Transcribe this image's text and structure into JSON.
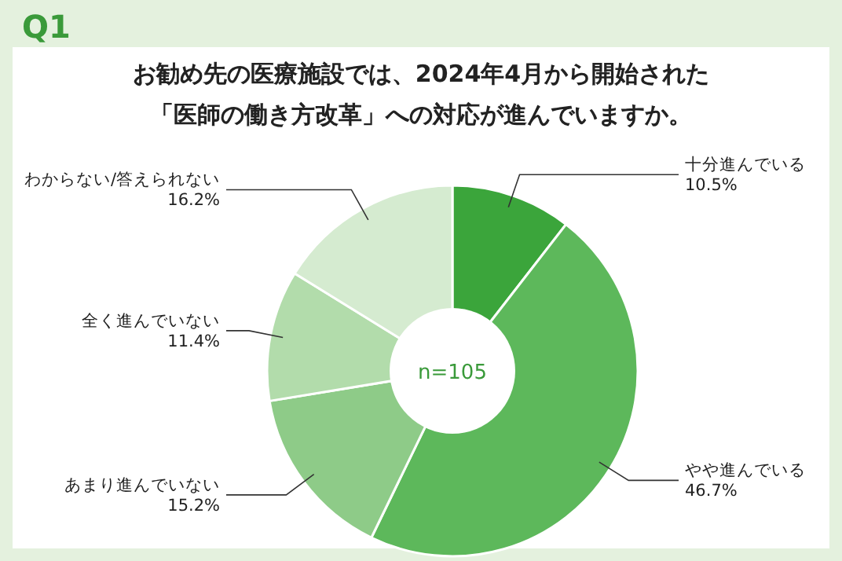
{
  "chart_data": {
    "type": "donut",
    "title": "お勧め先の医療施設では、2024年4月から開始された",
    "subtitle": "「医師の働き方改革」への対応が進んでいますか。",
    "annotations": [
      "Q1",
      "n=105"
    ],
    "categories": [
      "十分進んでいる",
      "やや進んでいる",
      "あまり進んでいない",
      "全く進んでいない",
      "わからない/答えられない"
    ],
    "values": [
      10.5,
      46.7,
      15.2,
      11.4,
      16.2
    ],
    "value_labels": [
      "10.5%",
      "46.7%",
      "15.2%",
      "11.4%",
      "16.2%"
    ],
    "colors": [
      "#3ba53b",
      "#5db85b",
      "#8ecb88",
      "#b2dcab",
      "#d5ebd0"
    ]
  }
}
